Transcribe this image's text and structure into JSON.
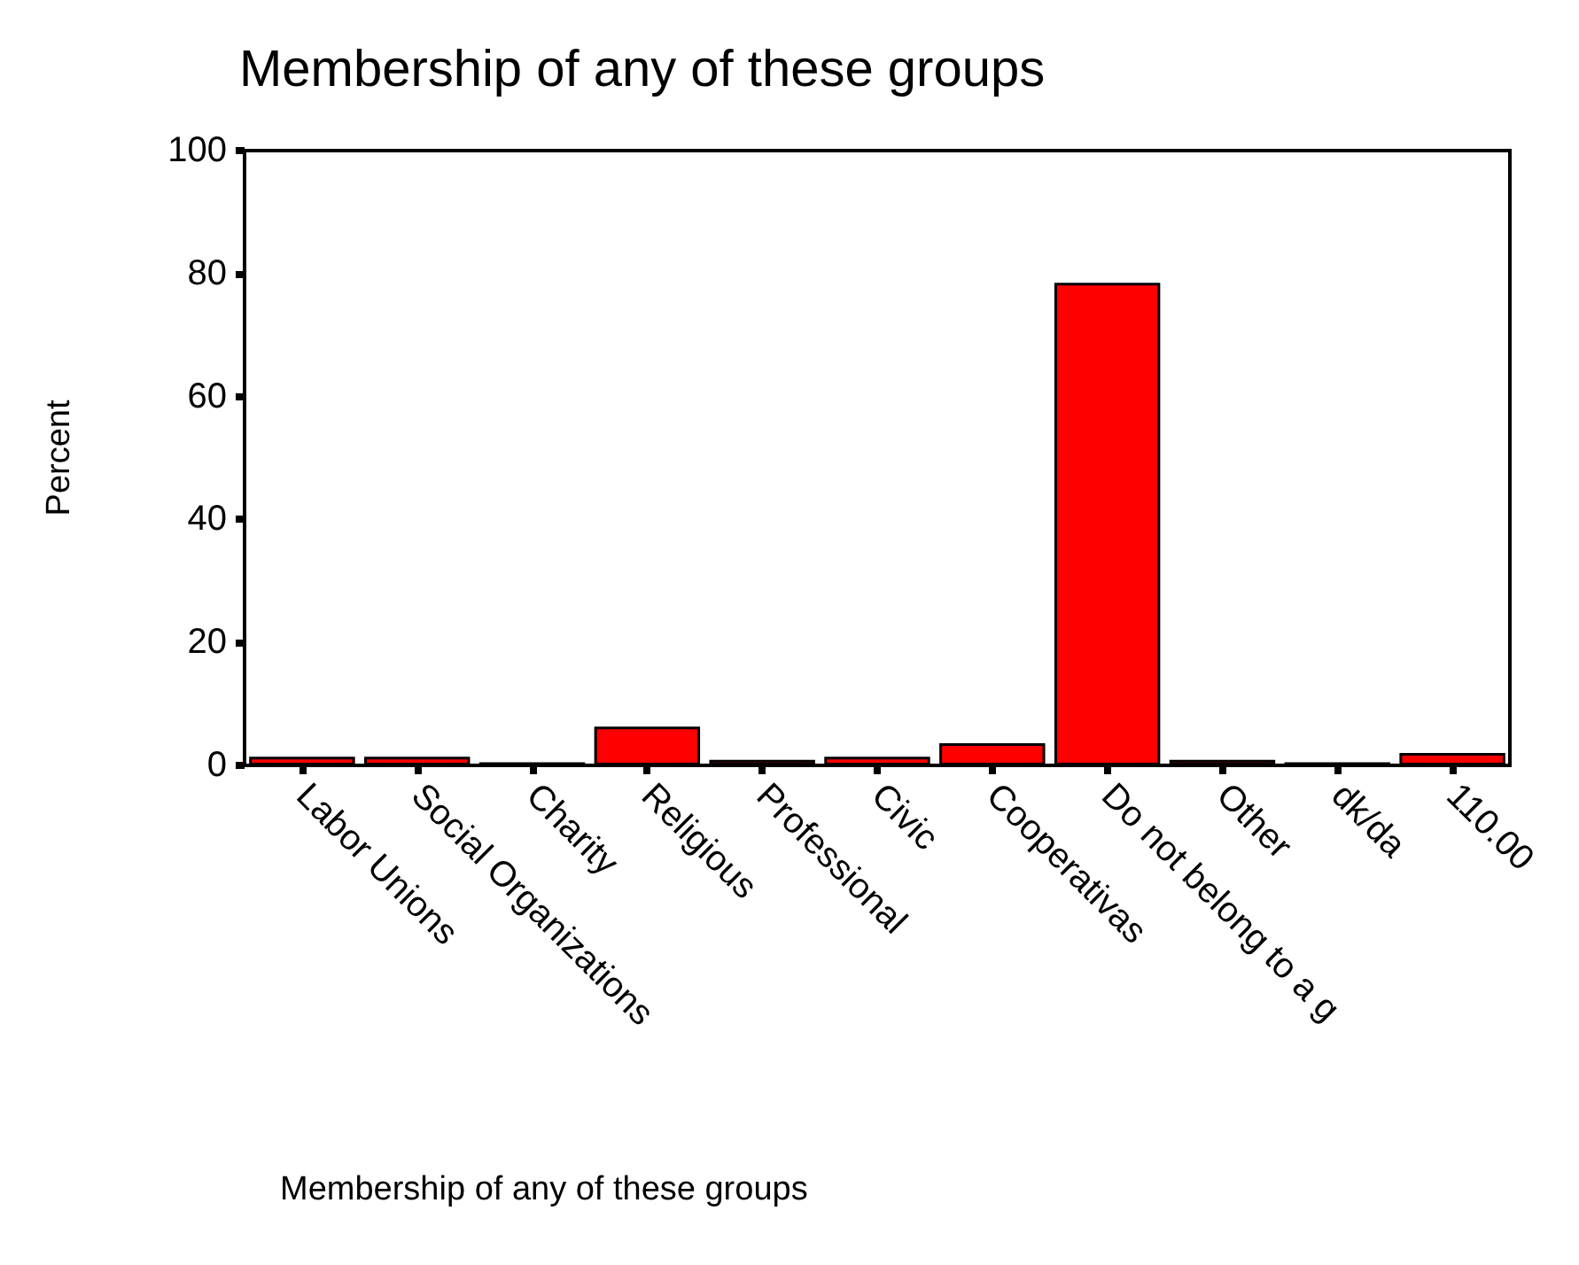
{
  "chart_data": {
    "type": "bar",
    "title": "Membership of any of these groups",
    "xlabel": "Membership of any of these groups",
    "ylabel": "Percent",
    "categories": [
      "Labor Unions",
      "Social Organizations",
      "Charity",
      "Religious",
      "Professional",
      "Civic",
      "Cooperativas",
      "Do not belong to a g",
      "Other",
      "dk/da",
      "110.00"
    ],
    "values": [
      1.4,
      1.4,
      0.5,
      6.3,
      0.9,
      1.4,
      3.6,
      78.5,
      0.9,
      0.5,
      2.0
    ],
    "color": "#ff0000",
    "ylim": [
      0,
      100
    ],
    "yticks": [
      0,
      20,
      40,
      60,
      80,
      100
    ],
    "grid": false
  }
}
